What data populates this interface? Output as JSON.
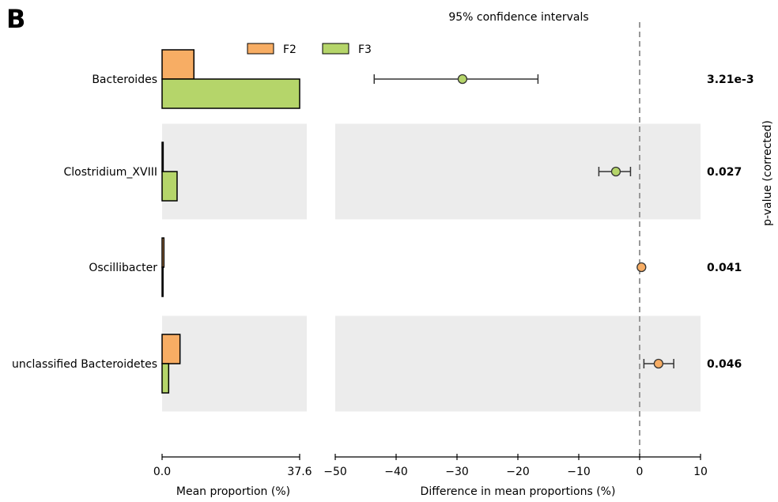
{
  "panel_label": "B",
  "chart_data": {
    "type": "extended_error_bar",
    "title": "95% confidence intervals",
    "categories": [
      "Bacteroides",
      "Clostridium_XVIII",
      "Oscillibacter",
      "unclassified Bacteroidetes"
    ],
    "groups": [
      {
        "name": "F2",
        "color": "#f7ad64"
      },
      {
        "name": "F3",
        "color": "#b5d56a"
      }
    ],
    "mean_proportions": {
      "xlabel": "Mean proportion (%)",
      "xlim": [
        0,
        37.6
      ],
      "tick_labels": [
        "0.0",
        "37.6"
      ],
      "series": [
        {
          "name": "F2",
          "values": [
            8.7,
            0.3,
            0.5,
            4.9
          ]
        },
        {
          "name": "F3",
          "values": [
            37.6,
            4.1,
            0.2,
            1.8
          ]
        }
      ]
    },
    "difference": {
      "xlabel": "Difference in mean proportions (%)",
      "xlim": [
        -50,
        10
      ],
      "ticks": [
        -50,
        -40,
        -30,
        -20,
        -10,
        0,
        10
      ],
      "tick_labels": [
        "−50",
        "−40",
        "−30",
        "−20",
        "−10",
        "0",
        "10"
      ],
      "points": [
        {
          "category": "Bacteroides",
          "value": -29.1,
          "ci_low": -43.6,
          "ci_high": -16.7,
          "group": "F3"
        },
        {
          "category": "Clostridium_XVIII",
          "value": -3.9,
          "ci_low": -6.7,
          "ci_high": -1.5,
          "group": "F3"
        },
        {
          "category": "Oscillibacter",
          "value": 0.3,
          "ci_low": 0.3,
          "ci_high": 0.3,
          "group": "F2"
        },
        {
          "category": "unclassified Bacteroidetes",
          "value": 3.1,
          "ci_low": 0.7,
          "ci_high": 5.6,
          "group": "F2"
        }
      ]
    },
    "p_values": {
      "label": "p-value (corrected)",
      "values": [
        "3.21e-3",
        "0.027",
        "0.041",
        "0.046"
      ]
    },
    "legend_position": "top"
  }
}
